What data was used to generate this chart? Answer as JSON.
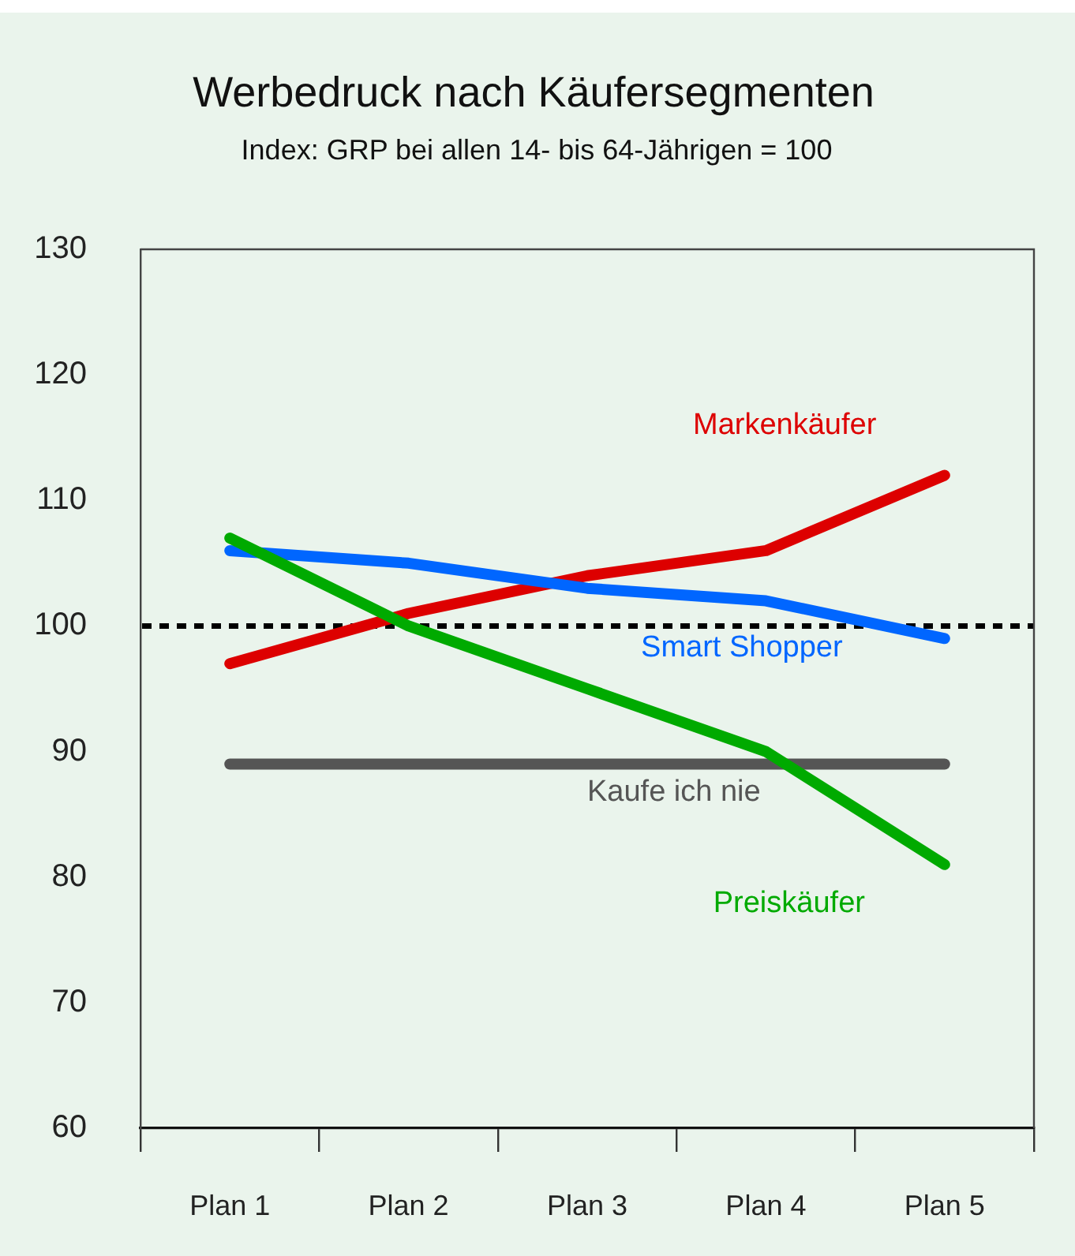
{
  "chart_data": {
    "type": "line",
    "title": "Werbedruck nach Käufersegmenten",
    "subtitle": "Index: GRP bei allen 14- bis 64-Jährigen = 100",
    "categories": [
      "Plan 1",
      "Plan 2",
      "Plan 3",
      "Plan 4",
      "Plan 5"
    ],
    "series": [
      {
        "name": "Preiskäufer",
        "color": "#00aa00",
        "values": [
          107,
          100,
          95,
          90,
          81
        ]
      },
      {
        "name": "Smart Shopper",
        "color": "#0066ff",
        "values": [
          106,
          105,
          103,
          102,
          99
        ]
      },
      {
        "name": "Markenkäufer",
        "color": "#dd0000",
        "values": [
          97,
          101,
          104,
          106,
          112
        ]
      },
      {
        "name": "Kaufe ich nie",
        "color": "#555555",
        "values": [
          89,
          89,
          89,
          89,
          89
        ]
      }
    ],
    "ylim": [
      60,
      130
    ],
    "yticks": [
      60,
      70,
      80,
      90,
      100,
      110,
      120,
      130
    ],
    "grid": false,
    "legend": false,
    "marker": "none",
    "ref_lines": [
      {
        "axis": "y",
        "value": 100,
        "color": "#000000",
        "line_style": "dotted"
      }
    ]
  }
}
